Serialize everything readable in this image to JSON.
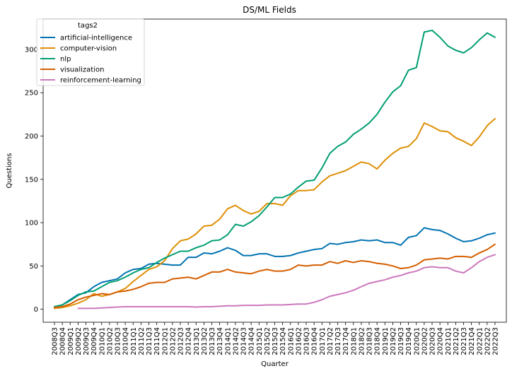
{
  "chart_data": {
    "type": "line",
    "title": "DS/ML Fields",
    "xlabel": "Quarter",
    "ylabel": "Questions",
    "ylim": [
      -15,
      335
    ],
    "yticks": [
      0,
      50,
      100,
      150,
      200,
      250,
      300
    ],
    "grid": false,
    "legend_title": "tags2",
    "legend_position": "upper-left",
    "x": [
      "2008Q3",
      "2008Q4",
      "2009Q1",
      "2009Q2",
      "2009Q3",
      "2009Q4",
      "2010Q1",
      "2010Q2",
      "2010Q3",
      "2010Q4",
      "2011Q1",
      "2011Q2",
      "2011Q3",
      "2011Q4",
      "2012Q1",
      "2012Q2",
      "2012Q3",
      "2012Q4",
      "2013Q1",
      "2013Q2",
      "2013Q3",
      "2013Q4",
      "2014Q1",
      "2014Q2",
      "2014Q3",
      "2014Q4",
      "2015Q1",
      "2015Q2",
      "2015Q3",
      "2015Q4",
      "2016Q1",
      "2016Q2",
      "2016Q3",
      "2016Q4",
      "2017Q1",
      "2017Q2",
      "2017Q3",
      "2017Q4",
      "2018Q1",
      "2018Q2",
      "2018Q3",
      "2018Q4",
      "2019Q1",
      "2019Q2",
      "2019Q3",
      "2019Q4",
      "2020Q1",
      "2020Q2",
      "2020Q3",
      "2020Q4",
      "2021Q1",
      "2021Q2",
      "2021Q3",
      "2021Q4",
      "2022Q1",
      "2022Q2",
      "2022Q3"
    ],
    "series": [
      {
        "name": "artificial-intelligence",
        "color": "#0173b2",
        "values": [
          3,
          5,
          11,
          17,
          19,
          26,
          31,
          33,
          35,
          42,
          46,
          47,
          52,
          53,
          52,
          51,
          51,
          60,
          60,
          65,
          64,
          67,
          71,
          68,
          62,
          62,
          64,
          64,
          61,
          61,
          62,
          65,
          67,
          69,
          70,
          76,
          75,
          77,
          78,
          80,
          79,
          80,
          77,
          77,
          74,
          83,
          85,
          94,
          92,
          91,
          87,
          82,
          78,
          79,
          82,
          86,
          88
        ]
      },
      {
        "name": "computer-vision",
        "color": "#de8f05",
        "values": [
          1,
          2,
          4,
          7,
          11,
          18,
          15,
          17,
          20,
          24,
          32,
          39,
          46,
          49,
          56,
          70,
          79,
          81,
          87,
          96,
          97,
          104,
          116,
          120,
          114,
          110,
          113,
          122,
          122,
          120,
          131,
          137,
          137,
          138,
          147,
          154,
          157,
          160,
          165,
          170,
          168,
          162,
          172,
          180,
          186,
          188,
          197,
          215,
          211,
          206,
          205,
          198,
          194,
          189,
          199,
          212,
          220
        ]
      },
      {
        "name": "nlp",
        "color": "#029e73",
        "values": [
          3,
          5,
          10,
          16,
          20,
          21,
          26,
          31,
          33,
          37,
          42,
          46,
          48,
          54,
          59,
          63,
          67,
          67,
          71,
          74,
          79,
          80,
          86,
          98,
          96,
          101,
          108,
          118,
          129,
          129,
          133,
          141,
          148,
          149,
          163,
          180,
          188,
          193,
          202,
          208,
          215,
          225,
          239,
          251,
          258,
          276,
          279,
          320,
          322,
          314,
          304,
          299,
          296,
          302,
          311,
          319,
          314
        ]
      },
      {
        "name": "visualization",
        "color": "#d55e00",
        "values": [
          2,
          3,
          6,
          11,
          14,
          16,
          18,
          17,
          20,
          21,
          23,
          26,
          30,
          31,
          31,
          35,
          36,
          37,
          35,
          39,
          43,
          43,
          46,
          43,
          42,
          41,
          44,
          46,
          44,
          44,
          46,
          51,
          50,
          51,
          51,
          55,
          53,
          56,
          54,
          56,
          55,
          53,
          52,
          50,
          47,
          48,
          51,
          57,
          58,
          59,
          58,
          61,
          61,
          60,
          65,
          69,
          75
        ]
      },
      {
        "name": "reinforcement-learning",
        "color": "#cc78bc",
        "values": [
          null,
          null,
          null,
          1,
          1,
          1,
          1.5,
          2,
          2.5,
          3,
          3,
          3,
          3,
          3,
          3,
          3,
          3,
          3,
          2.5,
          3,
          3,
          3.5,
          4,
          4,
          4.5,
          4.5,
          4.5,
          5,
          5,
          5,
          5.5,
          6,
          6,
          8,
          11,
          15,
          17,
          19,
          22,
          26,
          30,
          32,
          34,
          37,
          39,
          42,
          44,
          48,
          49,
          48,
          48,
          44,
          42,
          48,
          55,
          60,
          63
        ]
      }
    ]
  }
}
